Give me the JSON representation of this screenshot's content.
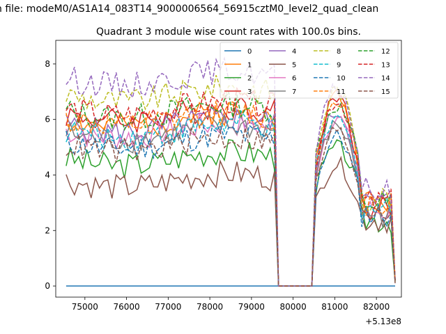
{
  "figure": {
    "suptitle": "n file: modeM0/AS1A14_083T14_9000006564_56915cztM0_level2_quad_clean",
    "offset_label": "+5.13e8"
  },
  "chart_data": {
    "type": "line",
    "title": "Quadrant 3 module wise count rates with 100.0s bins.",
    "xlabel": "",
    "ylabel": "",
    "xlim": [
      74300,
      82600
    ],
    "ylim": [
      -0.4,
      8.85
    ],
    "x_ticks": [
      75000,
      76000,
      77000,
      78000,
      79000,
      80000,
      81000,
      82000
    ],
    "y_ticks": [
      0,
      2,
      4,
      6,
      8
    ],
    "x_offset": 513000000,
    "grid": false,
    "legend": {
      "position": "top-right",
      "columns": 4
    },
    "segments": [
      {
        "x_start": 74550,
        "x_end": 79550,
        "step": 100
      },
      {
        "x_start": 80550,
        "x_end": 81550,
        "step": 100
      },
      {
        "x_start": 81650,
        "x_end": 82350,
        "step": 100
      }
    ],
    "gap_x": [
      79650,
      80450
    ],
    "end_x": 82450,
    "series": [
      {
        "name": "0",
        "color": "#1f77b4",
        "dash": "solid",
        "base": 0,
        "amp": 0,
        "seed": 1,
        "hump": [
          0,
          0,
          0
        ],
        "end": 0
      },
      {
        "name": "1",
        "color": "#ff7f0e",
        "dash": "solid",
        "base": 6.0,
        "amp": 0.3,
        "seed": 2,
        "hump": [
          4.5,
          6.9,
          3.0
        ],
        "end": 0.2
      },
      {
        "name": "2",
        "color": "#2ca02c",
        "dash": "solid",
        "base": 4.6,
        "amp": 0.3,
        "seed": 3,
        "hump": [
          3.6,
          5.0,
          2.4
        ],
        "end": 0.15
      },
      {
        "name": "3",
        "color": "#d62728",
        "dash": "solid",
        "base": 6.2,
        "amp": 0.3,
        "seed": 4,
        "hump": [
          4.4,
          6.9,
          2.8
        ],
        "end": 0.2
      },
      {
        "name": "4",
        "color": "#9467bd",
        "dash": "solid",
        "base": 5.8,
        "amp": 0.3,
        "seed": 5,
        "hump": [
          4.2,
          6.3,
          3.0
        ],
        "end": 0.2
      },
      {
        "name": "5",
        "color": "#8c564b",
        "dash": "solid",
        "base": 3.8,
        "amp": 0.3,
        "seed": 6,
        "hump": [
          3.0,
          4.4,
          2.4
        ],
        "end": 0.1
      },
      {
        "name": "6",
        "color": "#e377c2",
        "dash": "solid",
        "base": 5.6,
        "amp": 0.3,
        "seed": 7,
        "hump": [
          4.1,
          6.1,
          2.7
        ],
        "end": 0.2
      },
      {
        "name": "7",
        "color": "#7f7f7f",
        "dash": "solid",
        "base": 5.5,
        "amp": 0.3,
        "seed": 8,
        "hump": [
          4.0,
          5.8,
          2.6
        ],
        "end": 0.2
      },
      {
        "name": "8",
        "color": "#bcbd22",
        "dash": "dashed",
        "base": 6.9,
        "amp": 0.3,
        "seed": 9,
        "hump": [
          4.8,
          7.1,
          3.2
        ],
        "end": 0.2
      },
      {
        "name": "9",
        "color": "#17becf",
        "dash": "dashed",
        "base": 5.6,
        "amp": 0.3,
        "seed": 10,
        "hump": [
          4.2,
          6.0,
          2.8
        ],
        "end": 0.2
      },
      {
        "name": "10",
        "color": "#1f77b4",
        "dash": "dashed",
        "base": 5.2,
        "amp": 0.3,
        "seed": 11,
        "hump": [
          3.6,
          5.4,
          2.6
        ],
        "end": 0.15
      },
      {
        "name": "11",
        "color": "#ff7f0e",
        "dash": "dashed",
        "base": 6.0,
        "amp": 0.3,
        "seed": 12,
        "hump": [
          4.4,
          6.8,
          3.0
        ],
        "end": 0.2
      },
      {
        "name": "12",
        "color": "#2ca02c",
        "dash": "dashed",
        "base": 6.3,
        "amp": 0.3,
        "seed": 13,
        "hump": [
          4.7,
          6.5,
          3.0
        ],
        "end": 0.2
      },
      {
        "name": "13",
        "color": "#d62728",
        "dash": "dashed",
        "base": 6.4,
        "amp": 0.3,
        "seed": 14,
        "hump": [
          4.5,
          6.7,
          3.0
        ],
        "end": 0.2
      },
      {
        "name": "14",
        "color": "#9467bd",
        "dash": "dashed",
        "base": 7.5,
        "amp": 0.3,
        "seed": 15,
        "hump": [
          4.9,
          7.1,
          3.4
        ],
        "end": 0.25
      },
      {
        "name": "15",
        "color": "#8c564b",
        "dash": "dashed",
        "base": 5.1,
        "amp": 0.3,
        "seed": 16,
        "hump": [
          3.8,
          5.6,
          2.8
        ],
        "end": 0.15
      }
    ]
  }
}
